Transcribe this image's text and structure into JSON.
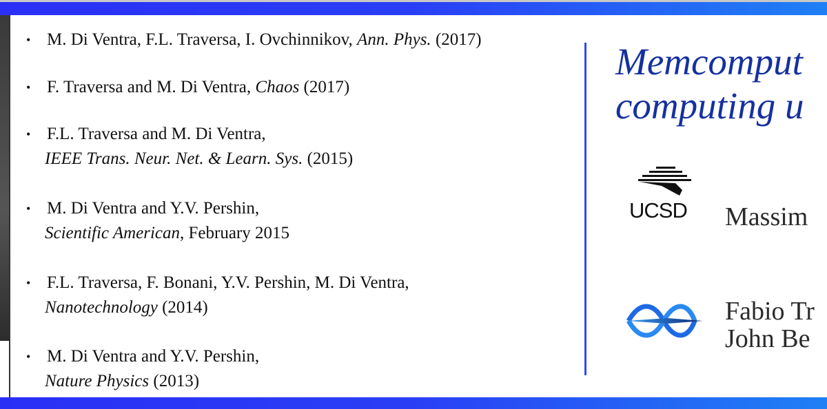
{
  "references": [
    {
      "line1_authors": "M. Di Ventra, F.L. Traversa, I. Ovchinnikov, ",
      "line1_journal": "Ann. Phys.",
      "line1_tail": " (2017)",
      "line2_journal": "",
      "line2_tail": ""
    },
    {
      "line1_authors": "F. Traversa and M. Di Ventra, ",
      "line1_journal": "Chaos",
      "line1_tail": " (2017)",
      "line2_journal": "",
      "line2_tail": ""
    },
    {
      "line1_authors": "F.L. Traversa and M. Di Ventra,",
      "line1_journal": "",
      "line1_tail": "",
      "line2_journal": "IEEE Trans. Neur. Net. & Learn. Sys.",
      "line2_tail": " (2015)"
    },
    {
      "line1_authors": "M. Di Ventra and Y.V. Pershin,",
      "line1_journal": "",
      "line1_tail": "",
      "line2_journal": "Scientific American",
      "line2_tail": ", February 2015"
    },
    {
      "line1_authors": "F.L. Traversa, F. Bonani, Y.V. Pershin, M. Di Ventra,",
      "line1_journal": "",
      "line1_tail": "",
      "line2_journal": "Nanotechnology",
      "line2_tail": " (2014)"
    },
    {
      "line1_authors": "M. Di Ventra and Y.V. Pershin,",
      "line1_journal": "",
      "line1_tail": "",
      "line2_journal": "Nature Physics",
      "line2_tail": " (2013)"
    }
  ],
  "bullet": "•",
  "title": {
    "line1": "Memcomput",
    "line2": "computing u"
  },
  "logos": {
    "ucsd": "UCSD"
  },
  "names": {
    "line1": "Massim",
    "line2": "Fabio Tr",
    "line3": "John Be"
  },
  "colors": {
    "accent": "#2a3ff5",
    "title": "#1530a0"
  }
}
